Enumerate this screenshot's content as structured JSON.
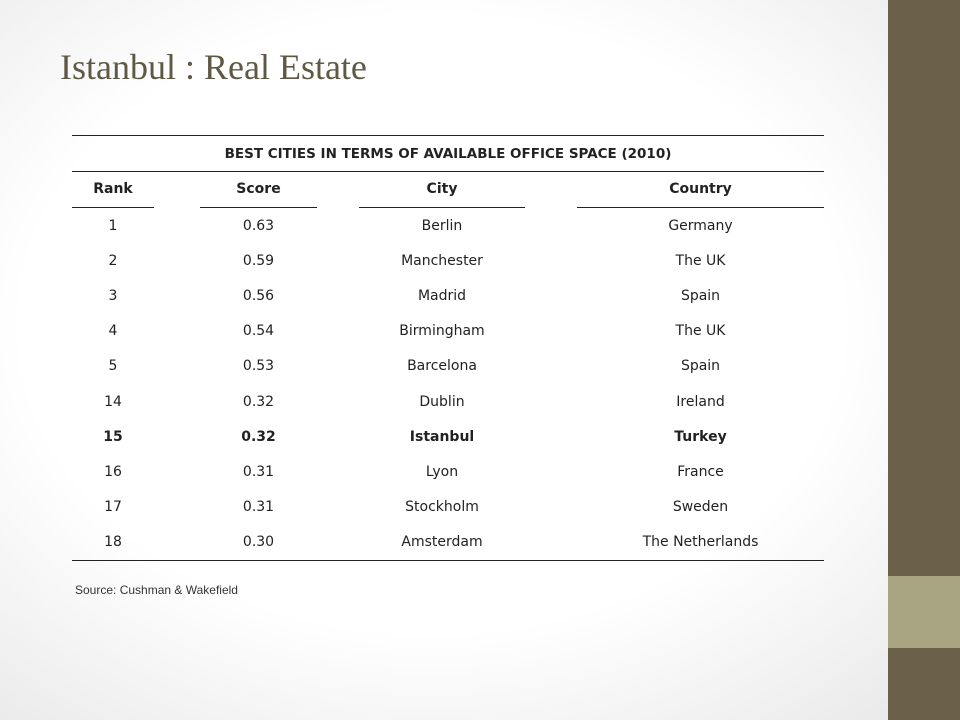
{
  "slide": {
    "title": "Istanbul : Real Estate",
    "source": "Source: Cushman  & Wakefield",
    "colors": {
      "title": "#5f5844",
      "bar_dark": "#6b6049",
      "bar_light": "#a9a583"
    }
  },
  "table": {
    "caption": "BEST CITIES IN TERMS OF AVAILABLE OFFICE SPACE (2010)",
    "headers": {
      "rank": "Rank",
      "score": "Score",
      "city": "City",
      "country": "Country"
    },
    "rows": [
      {
        "rank": "1",
        "score": "0.63",
        "city": "Berlin",
        "country": "Germany"
      },
      {
        "rank": "2",
        "score": "0.59",
        "city": "Manchester",
        "country": "The UK"
      },
      {
        "rank": "3",
        "score": "0.56",
        "city": "Madrid",
        "country": "Spain"
      },
      {
        "rank": "4",
        "score": "0.54",
        "city": "Birmingham",
        "country": "The UK"
      },
      {
        "rank": "5",
        "score": "0.53",
        "city": "Barcelona",
        "country": "Spain"
      },
      {
        "rank": "14",
        "score": "0.32",
        "city": "Dublin",
        "country": "Ireland"
      },
      {
        "rank": "15",
        "score": "0.32",
        "city": "Istanbul",
        "country": "Turkey"
      },
      {
        "rank": "16",
        "score": "0.31",
        "city": "Lyon",
        "country": "France"
      },
      {
        "rank": "17",
        "score": "0.31",
        "city": "Stockholm",
        "country": "Sweden"
      },
      {
        "rank": "18",
        "score": "0.30",
        "city": "Amsterdam",
        "country": "The Netherlands"
      }
    ]
  }
}
